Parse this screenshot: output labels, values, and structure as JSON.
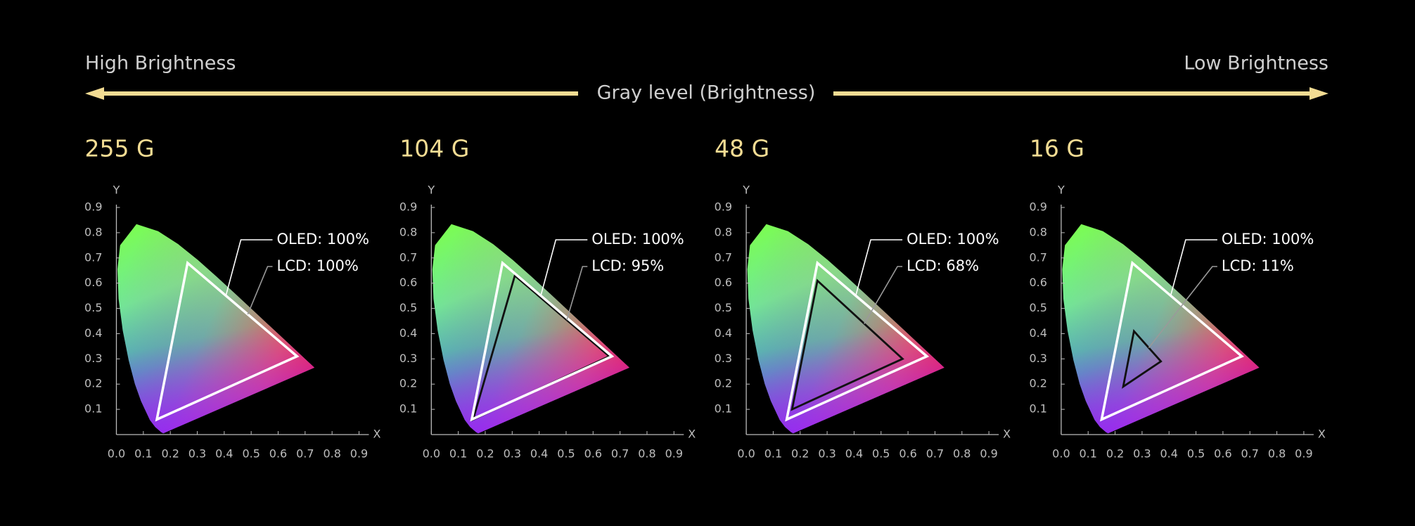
{
  "header": {
    "left": "High Brightness",
    "center": "Gray level (Brightness)",
    "right": "Low Brightness"
  },
  "chart_data": [
    {
      "type": "gamut",
      "title": "255 G",
      "x_label": "X",
      "y_label": "Y",
      "xlim": [
        0,
        0.9
      ],
      "ylim": [
        0,
        0.9
      ],
      "xticks": [
        {
          "value": 0,
          "label": "0.0"
        },
        0.1,
        0.2,
        0.3,
        0.4,
        0.5,
        0.6,
        0.7,
        0.8,
        0.9
      ],
      "yticks": [
        0.1,
        0.2,
        0.3,
        0.4,
        0.5,
        0.6,
        0.7,
        0.8,
        0.9
      ],
      "series": [
        {
          "label": "OLED: 100%",
          "color": "#ffffff",
          "x": [
            0.264,
            0.67,
            0.15
          ],
          "y": [
            0.68,
            0.31,
            0.06
          ]
        },
        {
          "label": "LCD: 100%",
          "color": "#ffffff",
          "x": [
            0.264,
            0.67,
            0.15
          ],
          "y": [
            0.68,
            0.31,
            0.06
          ]
        }
      ]
    },
    {
      "type": "gamut",
      "title": "104 G",
      "x_label": "X",
      "y_label": "Y",
      "xlim": [
        0,
        0.9
      ],
      "ylim": [
        0,
        0.9
      ],
      "xticks": [
        {
          "value": 0,
          "label": "0.0"
        },
        0.1,
        0.2,
        0.3,
        0.4,
        0.5,
        0.6,
        0.7,
        0.8,
        0.9
      ],
      "yticks": [
        0.1,
        0.2,
        0.3,
        0.4,
        0.5,
        0.6,
        0.7,
        0.8,
        0.9
      ],
      "series": [
        {
          "label": "OLED: 100%",
          "color": "#ffffff",
          "x": [
            0.264,
            0.67,
            0.15
          ],
          "y": [
            0.68,
            0.31,
            0.06
          ]
        },
        {
          "label": "LCD: 95%",
          "color": "#111111",
          "x": [
            0.31,
            0.66,
            0.155
          ],
          "y": [
            0.63,
            0.31,
            0.06
          ]
        }
      ]
    },
    {
      "type": "gamut",
      "title": "48 G",
      "x_label": "X",
      "y_label": "Y",
      "xlim": [
        0,
        0.9
      ],
      "ylim": [
        0,
        0.9
      ],
      "xticks": [
        {
          "value": 0,
          "label": "0.0"
        },
        0.1,
        0.2,
        0.3,
        0.4,
        0.5,
        0.6,
        0.7,
        0.8,
        0.9
      ],
      "yticks": [
        0.1,
        0.2,
        0.3,
        0.4,
        0.5,
        0.6,
        0.7,
        0.8,
        0.9
      ],
      "series": [
        {
          "label": "OLED: 100%",
          "color": "#ffffff",
          "x": [
            0.264,
            0.67,
            0.15
          ],
          "y": [
            0.68,
            0.31,
            0.06
          ]
        },
        {
          "label": "LCD: 68%",
          "color": "#111111",
          "x": [
            0.264,
            0.58,
            0.17
          ],
          "y": [
            0.61,
            0.3,
            0.1
          ]
        }
      ]
    },
    {
      "type": "gamut",
      "title": "16 G",
      "x_label": "X",
      "y_label": "Y",
      "xlim": [
        0,
        0.9
      ],
      "ylim": [
        0,
        0.9
      ],
      "xticks": [
        {
          "value": 0,
          "label": "0.0"
        },
        0.1,
        0.2,
        0.3,
        0.4,
        0.5,
        0.6,
        0.7,
        0.8,
        0.9
      ],
      "yticks": [
        0.1,
        0.2,
        0.3,
        0.4,
        0.5,
        0.6,
        0.7,
        0.8,
        0.9
      ],
      "series": [
        {
          "label": "OLED: 100%",
          "color": "#ffffff",
          "x": [
            0.264,
            0.67,
            0.15
          ],
          "y": [
            0.68,
            0.31,
            0.06
          ]
        },
        {
          "label": "LCD: 11%",
          "color": "#111111",
          "x": [
            0.27,
            0.37,
            0.23
          ],
          "y": [
            0.41,
            0.29,
            0.19
          ]
        }
      ]
    }
  ]
}
